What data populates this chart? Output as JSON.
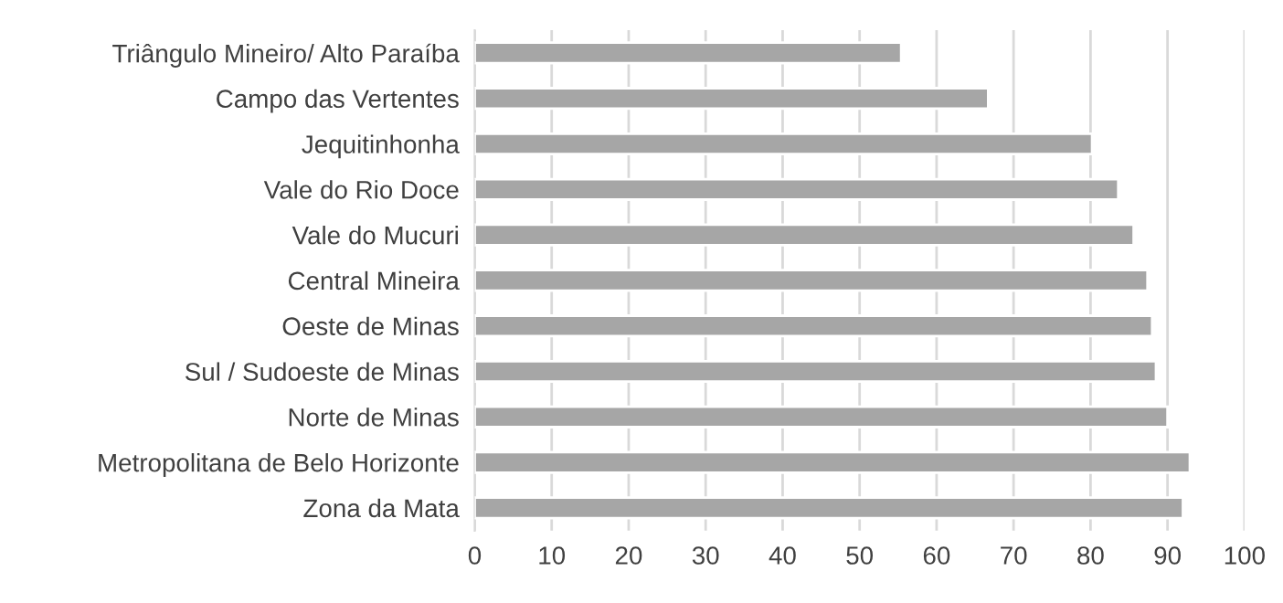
{
  "chart_data": {
    "type": "bar",
    "orientation": "horizontal",
    "categories": [
      "Triângulo Mineiro/ Alto Paraíba",
      "Campo das Vertentes",
      "Jequitinhonha",
      "Vale do Rio Doce",
      "Vale do Mucuri",
      "Central Mineira",
      "Oeste de Minas",
      "Sul / Sudoeste de Minas",
      "Norte de Minas",
      "Metropolitana de Belo Horizonte",
      "Zona da Mata"
    ],
    "values": [
      55.4,
      66.7,
      80.2,
      83.6,
      85.6,
      87.4,
      88.0,
      88.5,
      90.0,
      92.9,
      92.0
    ],
    "color": "#a6a6a6",
    "xlim": [
      0,
      100
    ],
    "xticks": [
      0,
      10,
      20,
      30,
      40,
      50,
      60,
      70,
      80,
      90,
      100
    ],
    "grid": "x"
  }
}
